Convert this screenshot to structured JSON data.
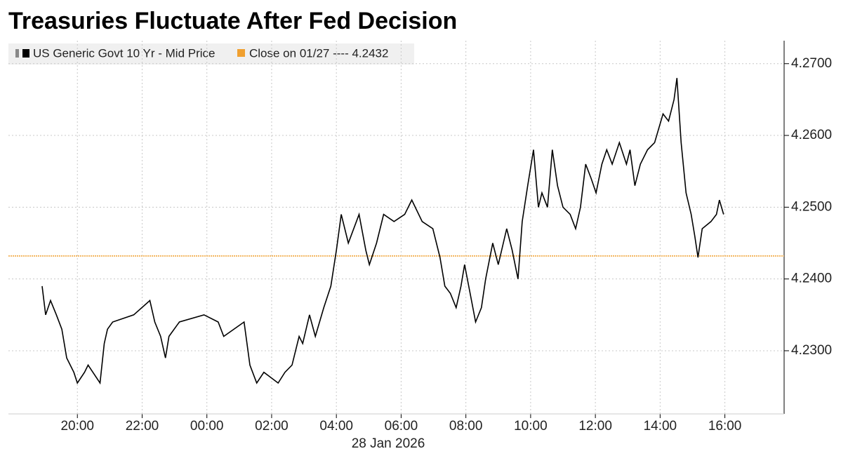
{
  "chart_data": {
    "type": "line",
    "title": "Treasuries Fluctuate After Fed Decision",
    "x_annotation": "28 Jan 2026",
    "series": [
      {
        "name": "US Generic Govt 10 Yr - Mid Price",
        "color": "#000000",
        "x": [
          -5.09,
          -4.98,
          -4.83,
          -4.65,
          -4.48,
          -4.33,
          -4.11,
          -4.0,
          -3.78,
          -3.67,
          -3.3,
          -3.17,
          -3.07,
          -2.91,
          -2.26,
          -1.76,
          -1.61,
          -1.43,
          -1.28,
          -1.17,
          -0.85,
          -0.09,
          0.35,
          0.52,
          1.15,
          1.33,
          1.54,
          1.76,
          2.2,
          2.41,
          2.63,
          2.85,
          2.96,
          3.17,
          3.35,
          3.61,
          3.83,
          4.0,
          4.15,
          4.37,
          4.7,
          4.91,
          5.02,
          5.24,
          5.46,
          5.78,
          6.11,
          6.33,
          6.65,
          6.98,
          7.2,
          7.35,
          7.52,
          7.7,
          7.85,
          7.96,
          8.13,
          8.3,
          8.48,
          8.61,
          8.83,
          9.0,
          9.26,
          9.43,
          9.61,
          9.74,
          9.91,
          10.09,
          10.24,
          10.35,
          10.52,
          10.67,
          10.83,
          11.0,
          11.22,
          11.39,
          11.54,
          11.7,
          11.87,
          12.02,
          12.2,
          12.35,
          12.52,
          12.74,
          12.96,
          13.07,
          13.22,
          13.39,
          13.61,
          13.83,
          14.09,
          14.26,
          14.43,
          14.52,
          14.65,
          14.8,
          14.96,
          15.07,
          15.17,
          15.3,
          15.57,
          15.74,
          15.83,
          15.96
        ],
        "values": [
          4.239,
          4.235,
          4.237,
          4.235,
          4.233,
          4.229,
          4.227,
          4.2255,
          4.227,
          4.228,
          4.2255,
          4.231,
          4.233,
          4.234,
          4.235,
          4.237,
          4.234,
          4.232,
          4.229,
          4.232,
          4.234,
          4.235,
          4.234,
          4.232,
          4.234,
          4.228,
          4.2255,
          4.227,
          4.2255,
          4.227,
          4.228,
          4.232,
          4.231,
          4.235,
          4.232,
          4.236,
          4.239,
          4.244,
          4.249,
          4.245,
          4.249,
          4.244,
          4.242,
          4.245,
          4.249,
          4.248,
          4.249,
          4.251,
          4.248,
          4.247,
          4.243,
          4.239,
          4.238,
          4.236,
          4.239,
          4.242,
          4.238,
          4.234,
          4.236,
          4.24,
          4.245,
          4.242,
          4.247,
          4.244,
          4.24,
          4.248,
          4.253,
          4.258,
          4.25,
          4.252,
          4.25,
          4.258,
          4.253,
          4.25,
          4.249,
          4.247,
          4.25,
          4.256,
          4.254,
          4.252,
          4.256,
          4.258,
          4.256,
          4.259,
          4.256,
          4.258,
          4.253,
          4.256,
          4.258,
          4.259,
          4.263,
          4.262,
          4.265,
          4.268,
          4.259,
          4.252,
          4.249,
          4.246,
          4.243,
          4.247,
          4.248,
          4.249,
          4.251,
          4.249
        ]
      }
    ],
    "reference_line": {
      "label": "Close on 01/27 ---- 4.2432",
      "value": 4.2432,
      "color": "#f0a030"
    },
    "xlim": [
      -6.13,
      17.83
    ],
    "xticks": [
      {
        "value": -4,
        "label": "20:00"
      },
      {
        "value": -2,
        "label": "22:00"
      },
      {
        "value": 0,
        "label": "00:00"
      },
      {
        "value": 2,
        "label": "02:00"
      },
      {
        "value": 4,
        "label": "04:00"
      },
      {
        "value": 6,
        "label": "06:00"
      },
      {
        "value": 8,
        "label": "08:00"
      },
      {
        "value": 10,
        "label": "10:00"
      },
      {
        "value": 12,
        "label": "12:00"
      },
      {
        "value": 14,
        "label": "14:00"
      },
      {
        "value": 16,
        "label": "16:00"
      }
    ],
    "ylim": [
      4.2212,
      4.2732
    ],
    "yticks": [
      {
        "value": 4.23,
        "label": "4.2300"
      },
      {
        "value": 4.24,
        "label": "4.2400"
      },
      {
        "value": 4.25,
        "label": "4.2500"
      },
      {
        "value": 4.26,
        "label": "4.2600"
      },
      {
        "value": 4.27,
        "label": "4.2700"
      }
    ],
    "grid": true
  }
}
